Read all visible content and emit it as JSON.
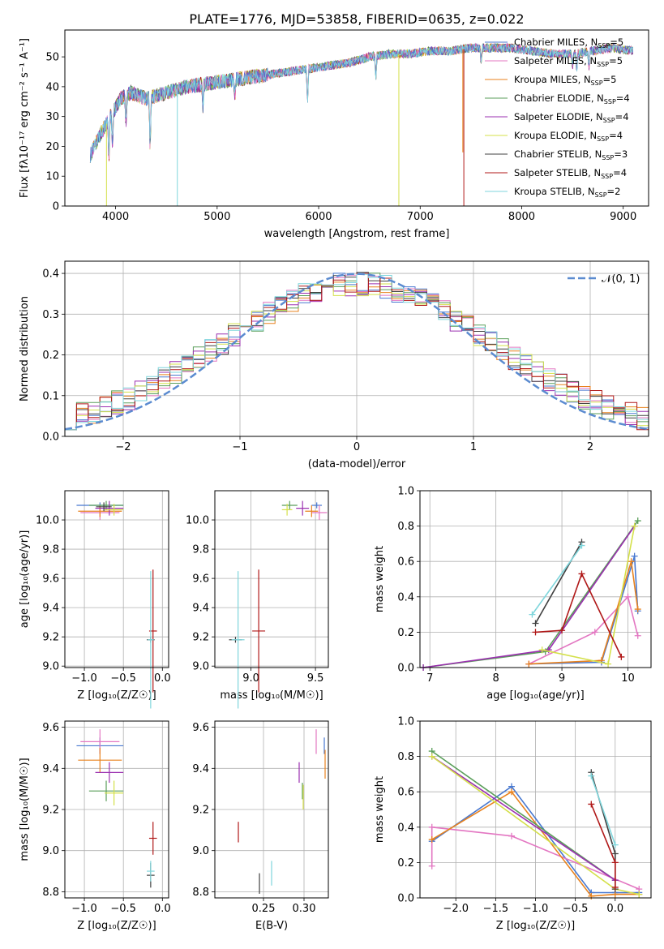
{
  "figure_title": "PLATE=1776, MJD=53858, FIBERID=0635, z=0.022",
  "colors": {
    "chabrier_miles": "#4878d0",
    "salpeter_miles": "#e377c2",
    "kroupa_miles": "#e8821e",
    "chabrier_elodie": "#5a9e5a",
    "salpeter_elodie": "#9b30b0",
    "kroupa_elodie": "#d4e04a",
    "chabrier_stelib": "#404040",
    "salpeter_stelib": "#b01818",
    "kroupa_stelib": "#7fd6dc",
    "normal_curve": "#5b8bd0",
    "grid": "#b0b0b0"
  },
  "chart_data": [
    {
      "id": "spectrum",
      "type": "line",
      "xlabel": "wavelength [Angstrom, rest frame]",
      "ylabel": "Flux [fλ10⁻¹⁷ erg cm⁻² s⁻¹ A⁻¹]",
      "xlim": [
        3500,
        9250
      ],
      "ylim": [
        0,
        59
      ],
      "xticks": [
        4000,
        5000,
        6000,
        7000,
        8000,
        9000
      ],
      "yticks": [
        0,
        10,
        20,
        30,
        40,
        50
      ],
      "grid": false,
      "legend_position": "top-right",
      "legend": [
        {
          "label": "Chabrier MILES, N",
          "sub": "SSP",
          "suffix": "=5",
          "color_key": "chabrier_miles"
        },
        {
          "label": "Salpeter MILES, N",
          "sub": "SSP",
          "suffix": "=5",
          "color_key": "salpeter_miles"
        },
        {
          "label": "Kroupa MILES, N",
          "sub": "SSP",
          "suffix": "=5",
          "color_key": "kroupa_miles"
        },
        {
          "label": "Chabrier ELODIE, N",
          "sub": "SSP",
          "suffix": "=4",
          "color_key": "chabrier_elodie"
        },
        {
          "label": "Salpeter ELODIE, N",
          "sub": "SSP",
          "suffix": "=4",
          "color_key": "salpeter_elodie"
        },
        {
          "label": "Kroupa ELODIE, N",
          "sub": "SSP",
          "suffix": "=4",
          "color_key": "kroupa_elodie"
        },
        {
          "label": "Chabrier STELIB, N",
          "sub": "SSP",
          "suffix": "=3",
          "color_key": "chabrier_stelib"
        },
        {
          "label": "Salpeter STELIB, N",
          "sub": "SSP",
          "suffix": "=4",
          "color_key": "salpeter_stelib"
        },
        {
          "label": "Kroupa STELIB, N",
          "sub": "SSP",
          "suffix": "=2",
          "color_key": "kroupa_stelib"
        }
      ],
      "continuum": {
        "x": [
          3750,
          3850,
          3950,
          4050,
          4150,
          4300,
          4500,
          4700,
          4900,
          5100,
          5300,
          5500,
          5700,
          5900,
          6100,
          6300,
          6500,
          6700,
          6900,
          7100,
          7300,
          7500,
          7700,
          7900,
          8100,
          8300,
          8500,
          8700,
          8900,
          9100
        ],
        "y": [
          17,
          24,
          30,
          36,
          38,
          36,
          38,
          40,
          41,
          42,
          43,
          44,
          45,
          46,
          47,
          48,
          50,
          51,
          51,
          52,
          52,
          53,
          53,
          53,
          52,
          51,
          51,
          52,
          53,
          52
        ]
      },
      "absorption_lines": [
        {
          "x": 3934,
          "depth": 14
        },
        {
          "x": 3969,
          "depth": 12
        },
        {
          "x": 4102,
          "depth": 10
        },
        {
          "x": 4340,
          "depth": 18
        },
        {
          "x": 4861,
          "depth": 8
        },
        {
          "x": 5175,
          "depth": 6
        },
        {
          "x": 5890,
          "depth": 12
        },
        {
          "x": 6563,
          "depth": 8
        },
        {
          "x": 7600,
          "depth": 5
        },
        {
          "x": 8500,
          "depth": 5
        },
        {
          "x": 8542,
          "depth": 6
        },
        {
          "x": 8662,
          "depth": 6
        }
      ],
      "spikes": [
        {
          "x": 3910,
          "y_min": 0,
          "color_key": "kroupa_elodie"
        },
        {
          "x": 4608,
          "y_min": 0,
          "color_key": "kroupa_stelib"
        },
        {
          "x": 6790,
          "y_min": 0,
          "color_key": "kroupa_elodie"
        },
        {
          "x": 7430,
          "y_min": 0,
          "color_key": "salpeter_stelib"
        },
        {
          "x": 7420,
          "y_min": 18,
          "color_key": "kroupa_miles"
        }
      ]
    },
    {
      "id": "residuals",
      "type": "step",
      "xlabel": "(data-model)/error",
      "ylabel": "Normed distribution",
      "xlim": [
        -2.5,
        2.5
      ],
      "ylim": [
        0,
        0.43
      ],
      "xticks": [
        -2,
        -1,
        0,
        1,
        2
      ],
      "yticks": [
        0.0,
        0.1,
        0.2,
        0.3,
        0.4
      ],
      "grid": true,
      "legend_position": "top-right",
      "legend": [
        {
          "label": "𝒩(0, 1)",
          "color_key": "normal_curve"
        }
      ],
      "bin_edges_start": -2.5,
      "bin_width": 0.1
    },
    {
      "id": "age_vs_Z",
      "type": "errorbar",
      "xlabel": "Z [log₁₀(Z/Z☉)]",
      "ylabel": "age  [log₁₀(age/yr)]",
      "xlim": [
        -1.25,
        0.08
      ],
      "ylim": [
        8.99,
        10.2
      ],
      "xticks": [
        -1.0,
        -0.5,
        0.0
      ],
      "yticks": [
        9.0,
        9.2,
        9.4,
        9.6,
        9.8,
        10.0
      ],
      "grid": true,
      "points": [
        {
          "c": "chabrier_miles",
          "x": -0.8,
          "xe": 0.3,
          "y": 10.1,
          "ye": 0.02
        },
        {
          "c": "salpeter_miles",
          "x": -0.8,
          "xe": 0.25,
          "y": 10.05,
          "ye": 0.05
        },
        {
          "c": "kroupa_miles",
          "x": -0.8,
          "xe": 0.28,
          "y": 10.06,
          "ye": 0.04
        },
        {
          "c": "chabrier_elodie",
          "x": -0.72,
          "xe": 0.22,
          "y": 10.1,
          "ye": 0.03
        },
        {
          "c": "salpeter_elodie",
          "x": -0.68,
          "xe": 0.18,
          "y": 10.08,
          "ye": 0.05
        },
        {
          "c": "kroupa_elodie",
          "x": -0.62,
          "xe": 0.12,
          "y": 10.07,
          "ye": 0.04
        },
        {
          "c": "chabrier_stelib",
          "x": -0.75,
          "xe": 0.1,
          "y": 10.09,
          "ye": 0.03
        },
        {
          "c": "chabrier_stelib",
          "x": -0.15,
          "xe": 0.05,
          "y": 9.18,
          "ye": 0.02
        },
        {
          "c": "salpeter_stelib",
          "x": -0.12,
          "xe": 0.05,
          "y": 9.24,
          "ye": 0.42
        },
        {
          "c": "kroupa_stelib",
          "x": -0.15,
          "xe": 0.04,
          "y": 9.18,
          "ye": 0.47
        }
      ]
    },
    {
      "id": "age_vs_mass",
      "type": "errorbar",
      "xlabel": "mass [log₁₀(M/M☉)]",
      "ylabel": "",
      "xlim": [
        8.72,
        9.6
      ],
      "ylim": [
        8.99,
        10.2
      ],
      "xticks": [
        9.0,
        9.5
      ],
      "yticks": [
        9.0,
        9.2,
        9.4,
        9.6,
        9.8,
        10.0
      ],
      "grid": true,
      "points": [
        {
          "c": "chabrier_miles",
          "x": 9.51,
          "xe": 0.04,
          "y": 10.1,
          "ye": 0.02
        },
        {
          "c": "salpeter_miles",
          "x": 9.53,
          "xe": 0.06,
          "y": 10.05,
          "ye": 0.05
        },
        {
          "c": "kroupa_miles",
          "x": 9.47,
          "xe": 0.05,
          "y": 10.06,
          "ye": 0.04
        },
        {
          "c": "chabrier_elodie",
          "x": 9.3,
          "xe": 0.06,
          "y": 10.1,
          "ye": 0.03
        },
        {
          "c": "salpeter_elodie",
          "x": 9.4,
          "xe": 0.05,
          "y": 10.08,
          "ye": 0.05
        },
        {
          "c": "kroupa_elodie",
          "x": 9.28,
          "xe": 0.04,
          "y": 10.07,
          "ye": 0.04
        },
        {
          "c": "chabrier_stelib",
          "x": 8.88,
          "xe": 0.05,
          "y": 9.18,
          "ye": 0.02
        },
        {
          "c": "salpeter_stelib",
          "x": 9.06,
          "xe": 0.05,
          "y": 9.24,
          "ye": 0.42
        },
        {
          "c": "kroupa_stelib",
          "x": 8.9,
          "xe": 0.05,
          "y": 9.18,
          "ye": 0.47
        }
      ]
    },
    {
      "id": "weight_vs_age",
      "type": "line",
      "xlabel": "age  [log₁₀(age/yr)]",
      "ylabel": "mass weight",
      "xlim": [
        6.85,
        10.35
      ],
      "ylim": [
        0,
        1.0
      ],
      "xticks": [
        7,
        8,
        9,
        10
      ],
      "yticks": [
        0.0,
        0.2,
        0.4,
        0.6,
        0.8,
        1.0
      ],
      "grid": true,
      "series": [
        {
          "c": "chabrier_miles",
          "x": [
            8.5,
            9.6,
            10.1,
            10.15
          ],
          "y": [
            0.02,
            0.03,
            0.63,
            0.32
          ]
        },
        {
          "c": "salpeter_miles",
          "x": [
            8.5,
            9.5,
            10.0,
            10.15
          ],
          "y": [
            0.02,
            0.2,
            0.4,
            0.18
          ]
        },
        {
          "c": "kroupa_miles",
          "x": [
            8.5,
            9.6,
            10.05,
            10.15
          ],
          "y": [
            0.02,
            0.04,
            0.6,
            0.33
          ]
        },
        {
          "c": "chabrier_elodie",
          "x": [
            6.9,
            8.75,
            10.15
          ],
          "y": [
            0.0,
            0.09,
            0.83
          ]
        },
        {
          "c": "salpeter_elodie",
          "x": [
            6.9,
            8.8,
            10.1
          ],
          "y": [
            0.0,
            0.1,
            0.8
          ]
        },
        {
          "c": "kroupa_elodie",
          "x": [
            8.7,
            9.7,
            10.1
          ],
          "y": [
            0.1,
            0.02,
            0.8
          ]
        },
        {
          "c": "chabrier_stelib",
          "x": [
            8.6,
            9.3
          ],
          "y": [
            0.25,
            0.71
          ]
        },
        {
          "c": "salpeter_stelib",
          "x": [
            8.6,
            9.0,
            9.3,
            9.9
          ],
          "y": [
            0.2,
            0.21,
            0.53,
            0.06
          ]
        },
        {
          "c": "kroupa_stelib",
          "x": [
            8.55,
            9.3
          ],
          "y": [
            0.3,
            0.69
          ]
        }
      ]
    },
    {
      "id": "mass_vs_Z",
      "type": "errorbar",
      "xlabel": "Z [log₁₀(Z/Z☉)]",
      "ylabel": "mass [log₁₀(M/M☉)]",
      "xlim": [
        -1.25,
        0.08
      ],
      "ylim": [
        8.77,
        9.63
      ],
      "xticks": [
        -1.0,
        -0.5,
        0.0
      ],
      "yticks": [
        8.8,
        9.0,
        9.2,
        9.4,
        9.6
      ],
      "grid": true,
      "points": [
        {
          "c": "chabrier_miles",
          "x": -0.8,
          "xe": 0.3,
          "y": 9.51,
          "ye": 0.04
        },
        {
          "c": "salpeter_miles",
          "x": -0.8,
          "xe": 0.25,
          "y": 9.53,
          "ye": 0.06
        },
        {
          "c": "kroupa_miles",
          "x": -0.8,
          "xe": 0.28,
          "y": 9.44,
          "ye": 0.06
        },
        {
          "c": "chabrier_elodie",
          "x": -0.72,
          "xe": 0.22,
          "y": 9.29,
          "ye": 0.05
        },
        {
          "c": "salpeter_elodie",
          "x": -0.68,
          "xe": 0.18,
          "y": 9.38,
          "ye": 0.05
        },
        {
          "c": "kroupa_elodie",
          "x": -0.62,
          "xe": 0.12,
          "y": 9.28,
          "ye": 0.06
        },
        {
          "c": "chabrier_stelib",
          "x": -0.15,
          "xe": 0.05,
          "y": 8.88,
          "ye": 0.06
        },
        {
          "c": "salpeter_stelib",
          "x": -0.12,
          "xe": 0.05,
          "y": 9.06,
          "ye": 0.08
        },
        {
          "c": "kroupa_stelib",
          "x": -0.15,
          "xe": 0.05,
          "y": 8.9,
          "ye": 0.05
        }
      ]
    },
    {
      "id": "mass_vs_ebv",
      "type": "errorbar",
      "xlabel": "E(B-V)",
      "ylabel": "",
      "xlim": [
        0.19,
        0.33
      ],
      "ylim": [
        8.77,
        9.63
      ],
      "xticks": [
        0.25,
        0.3
      ],
      "xticklabels": [
        "0.25",
        "0.30"
      ],
      "yticks": [
        8.8,
        9.0,
        9.2,
        9.4,
        9.6
      ],
      "grid": true,
      "points": [
        {
          "c": "chabrier_miles",
          "x": 0.325,
          "xe": 0,
          "y": 9.51,
          "ye": 0.04
        },
        {
          "c": "salpeter_miles",
          "x": 0.315,
          "xe": 0,
          "y": 9.53,
          "ye": 0.06
        },
        {
          "c": "kroupa_miles",
          "x": 0.326,
          "xe": 0,
          "y": 9.42,
          "ye": 0.07
        },
        {
          "c": "chabrier_elodie",
          "x": 0.298,
          "xe": 0,
          "y": 9.29,
          "ye": 0.04
        },
        {
          "c": "salpeter_elodie",
          "x": 0.294,
          "xe": 0,
          "y": 9.38,
          "ye": 0.05
        },
        {
          "c": "kroupa_elodie",
          "x": 0.299,
          "xe": 0,
          "y": 9.26,
          "ye": 0.06
        },
        {
          "c": "chabrier_stelib",
          "x": 0.245,
          "xe": 0,
          "y": 8.84,
          "ye": 0.05
        },
        {
          "c": "salpeter_stelib",
          "x": 0.219,
          "xe": 0,
          "y": 9.09,
          "ye": 0.05
        },
        {
          "c": "kroupa_stelib",
          "x": 0.26,
          "xe": 0,
          "y": 8.89,
          "ye": 0.06
        }
      ]
    },
    {
      "id": "weight_vs_Z",
      "type": "line",
      "xlabel": "Z [log₁₀(Z/Z☉)]",
      "ylabel": "mass weight",
      "xlim": [
        -2.45,
        0.45
      ],
      "ylim": [
        0,
        1.0
      ],
      "xticks": [
        -2.0,
        -1.5,
        -1.0,
        -0.5,
        0.0
      ],
      "yticks": [
        0.0,
        0.2,
        0.4,
        0.6,
        0.8,
        1.0
      ],
      "grid": true,
      "series": [
        {
          "c": "chabrier_miles",
          "x": [
            -2.3,
            -1.3,
            -0.3,
            0.0,
            0.3
          ],
          "y": [
            0.32,
            0.63,
            0.03,
            0.03,
            0.03
          ]
        },
        {
          "c": "salpeter_miles",
          "x": [
            -2.3,
            -2.3,
            -1.3,
            0.3
          ],
          "y": [
            0.18,
            0.4,
            0.35,
            0.05
          ]
        },
        {
          "c": "kroupa_miles",
          "x": [
            -2.3,
            -1.3,
            -0.3,
            0.0,
            0.3
          ],
          "y": [
            0.33,
            0.6,
            0.01,
            0.02,
            0.02
          ]
        },
        {
          "c": "chabrier_elodie",
          "x": [
            -2.3,
            0.0
          ],
          "y": [
            0.83,
            0.1
          ]
        },
        {
          "c": "salpeter_elodie",
          "x": [
            -2.3,
            0.0
          ],
          "y": [
            0.8,
            0.1
          ]
        },
        {
          "c": "kroupa_elodie",
          "x": [
            -2.3,
            0.0,
            0.3
          ],
          "y": [
            0.8,
            0.05,
            0.02
          ]
        },
        {
          "c": "chabrier_stelib",
          "x": [
            -0.3,
            0.0,
            0.0
          ],
          "y": [
            0.71,
            0.25,
            0.05
          ]
        },
        {
          "c": "salpeter_stelib",
          "x": [
            -0.3,
            0.0,
            0.0
          ],
          "y": [
            0.53,
            0.2,
            0.06
          ]
        },
        {
          "c": "kroupa_stelib",
          "x": [
            -0.3,
            0.0
          ],
          "y": [
            0.69,
            0.3
          ]
        }
      ]
    }
  ]
}
